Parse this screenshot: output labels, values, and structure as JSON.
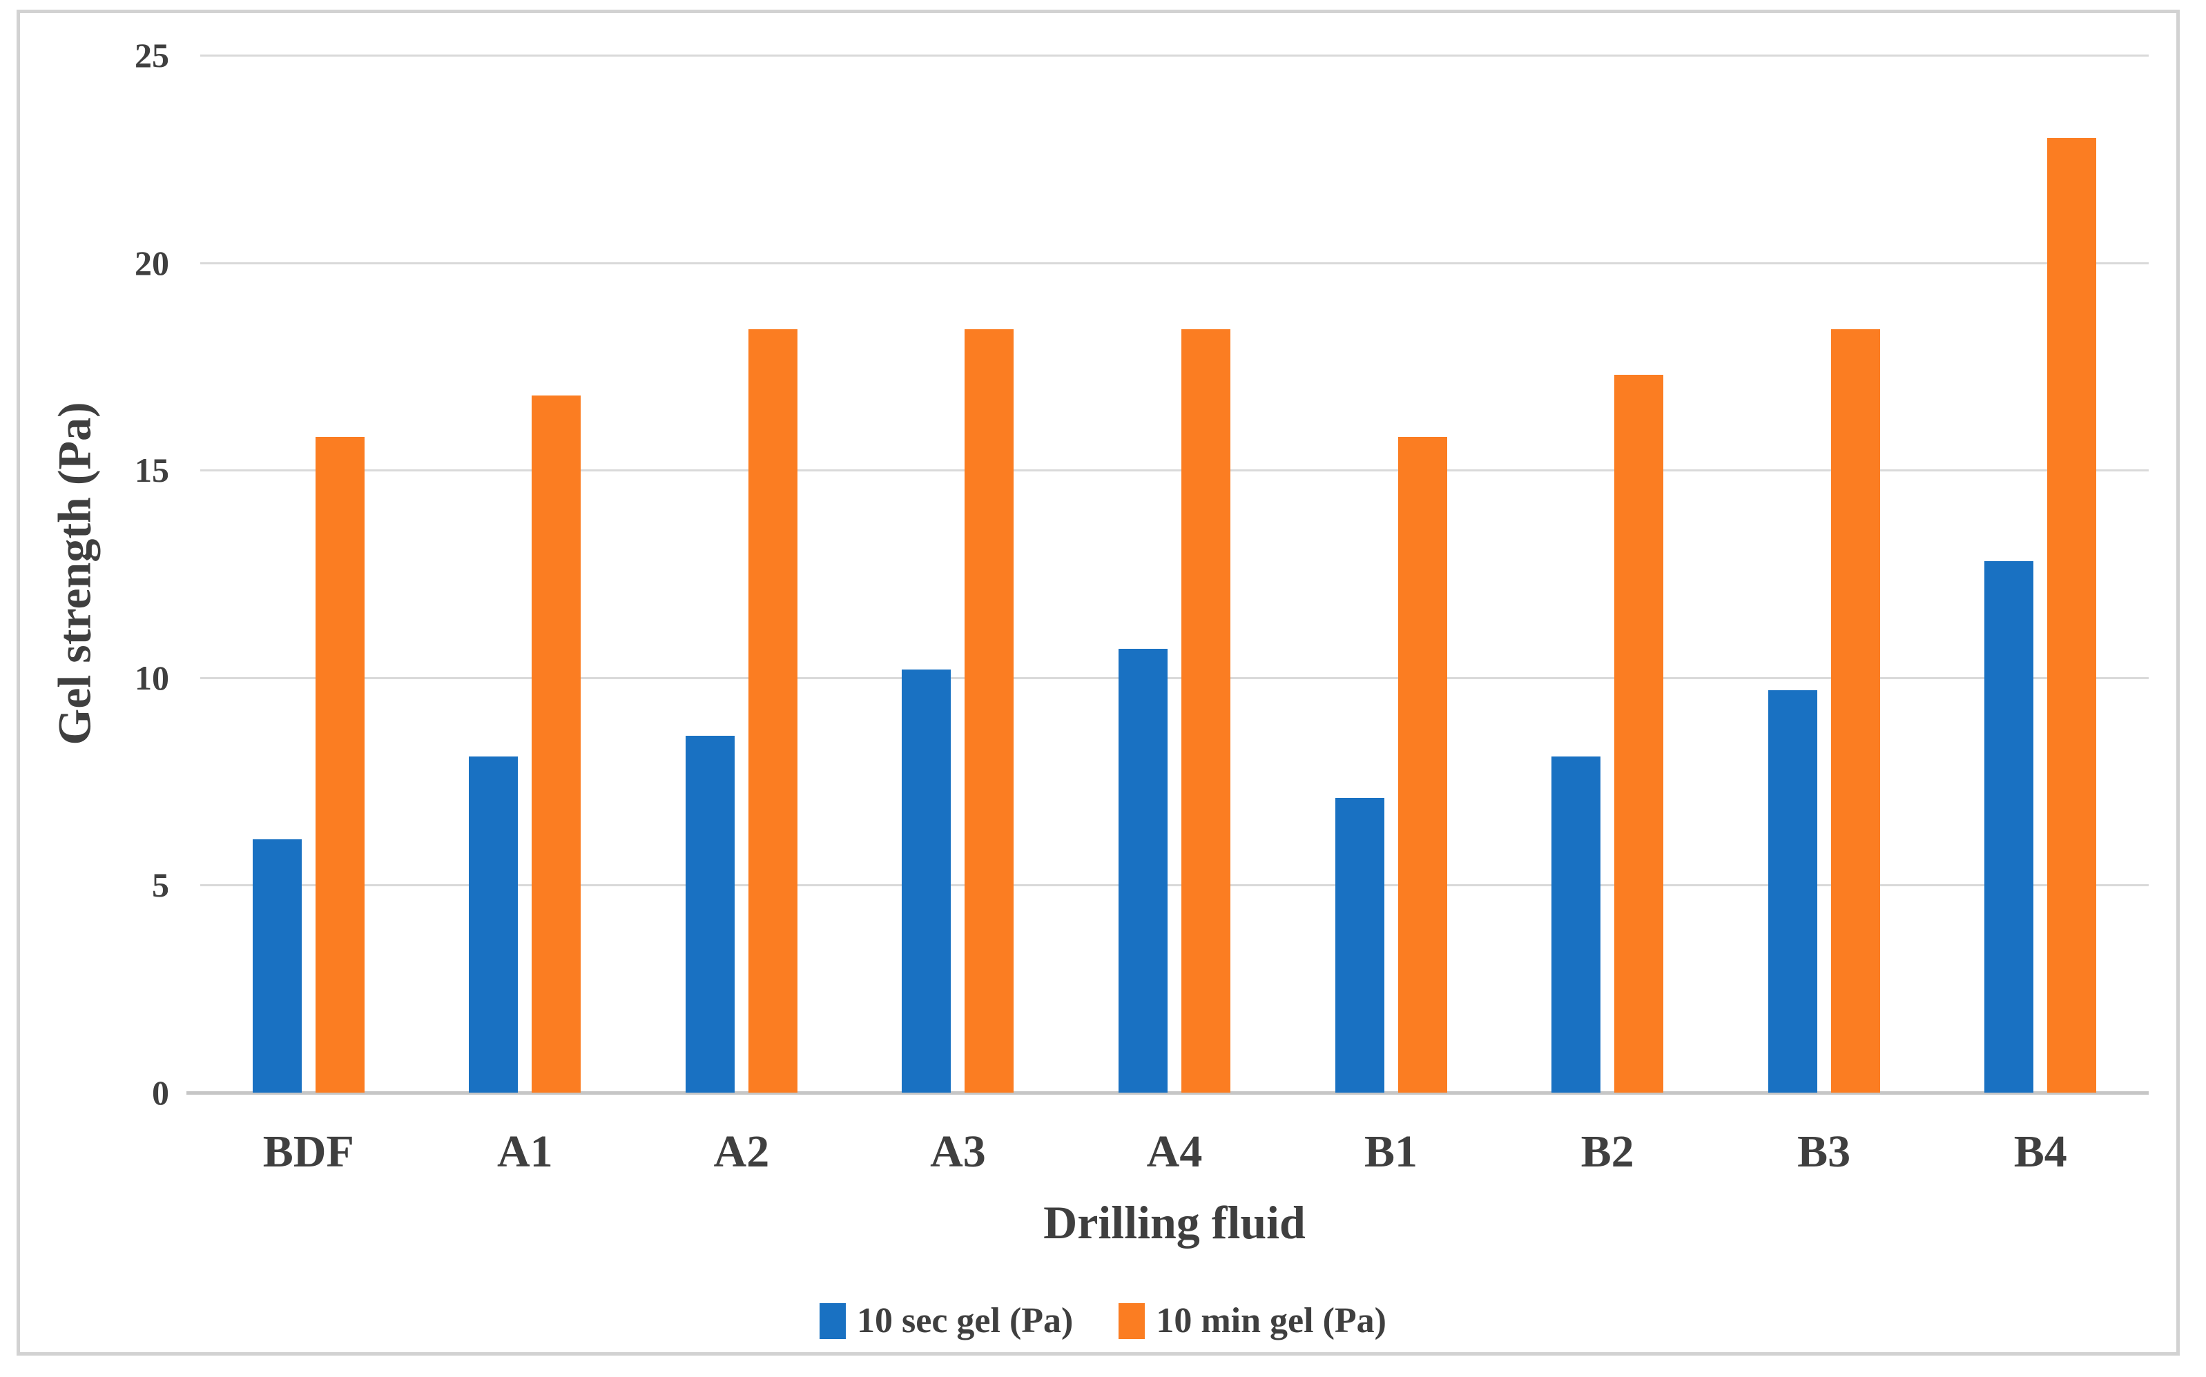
{
  "figure": {
    "background_color": "#ffffff",
    "border_color": "#d2d2d2",
    "gridline_color": "#d9d9d9",
    "axis_line_color": "#c6c6c6",
    "text_color": "#3f3f3f"
  },
  "chart_data": {
    "type": "bar",
    "title": "",
    "xlabel": "Drilling fluid",
    "ylabel": "Gel strength (Pa)",
    "categories": [
      "BDF",
      "A1",
      "A2",
      "A3",
      "A4",
      "B1",
      "B2",
      "B3",
      "B4"
    ],
    "series": [
      {
        "name": "10 sec gel (Pa)",
        "color": "#1971c2",
        "values": [
          6.1,
          8.1,
          8.6,
          10.2,
          10.7,
          7.1,
          8.1,
          9.7,
          12.8
        ]
      },
      {
        "name": "10 min gel (Pa)",
        "color": "#fb7d22",
        "values": [
          15.8,
          16.8,
          18.4,
          18.4,
          18.4,
          15.8,
          17.3,
          18.4,
          23.0
        ]
      }
    ],
    "ylim": [
      0,
      25
    ],
    "yticks": [
      0,
      5,
      10,
      15,
      20,
      25
    ],
    "grid": true,
    "legend_position": "bottom"
  }
}
